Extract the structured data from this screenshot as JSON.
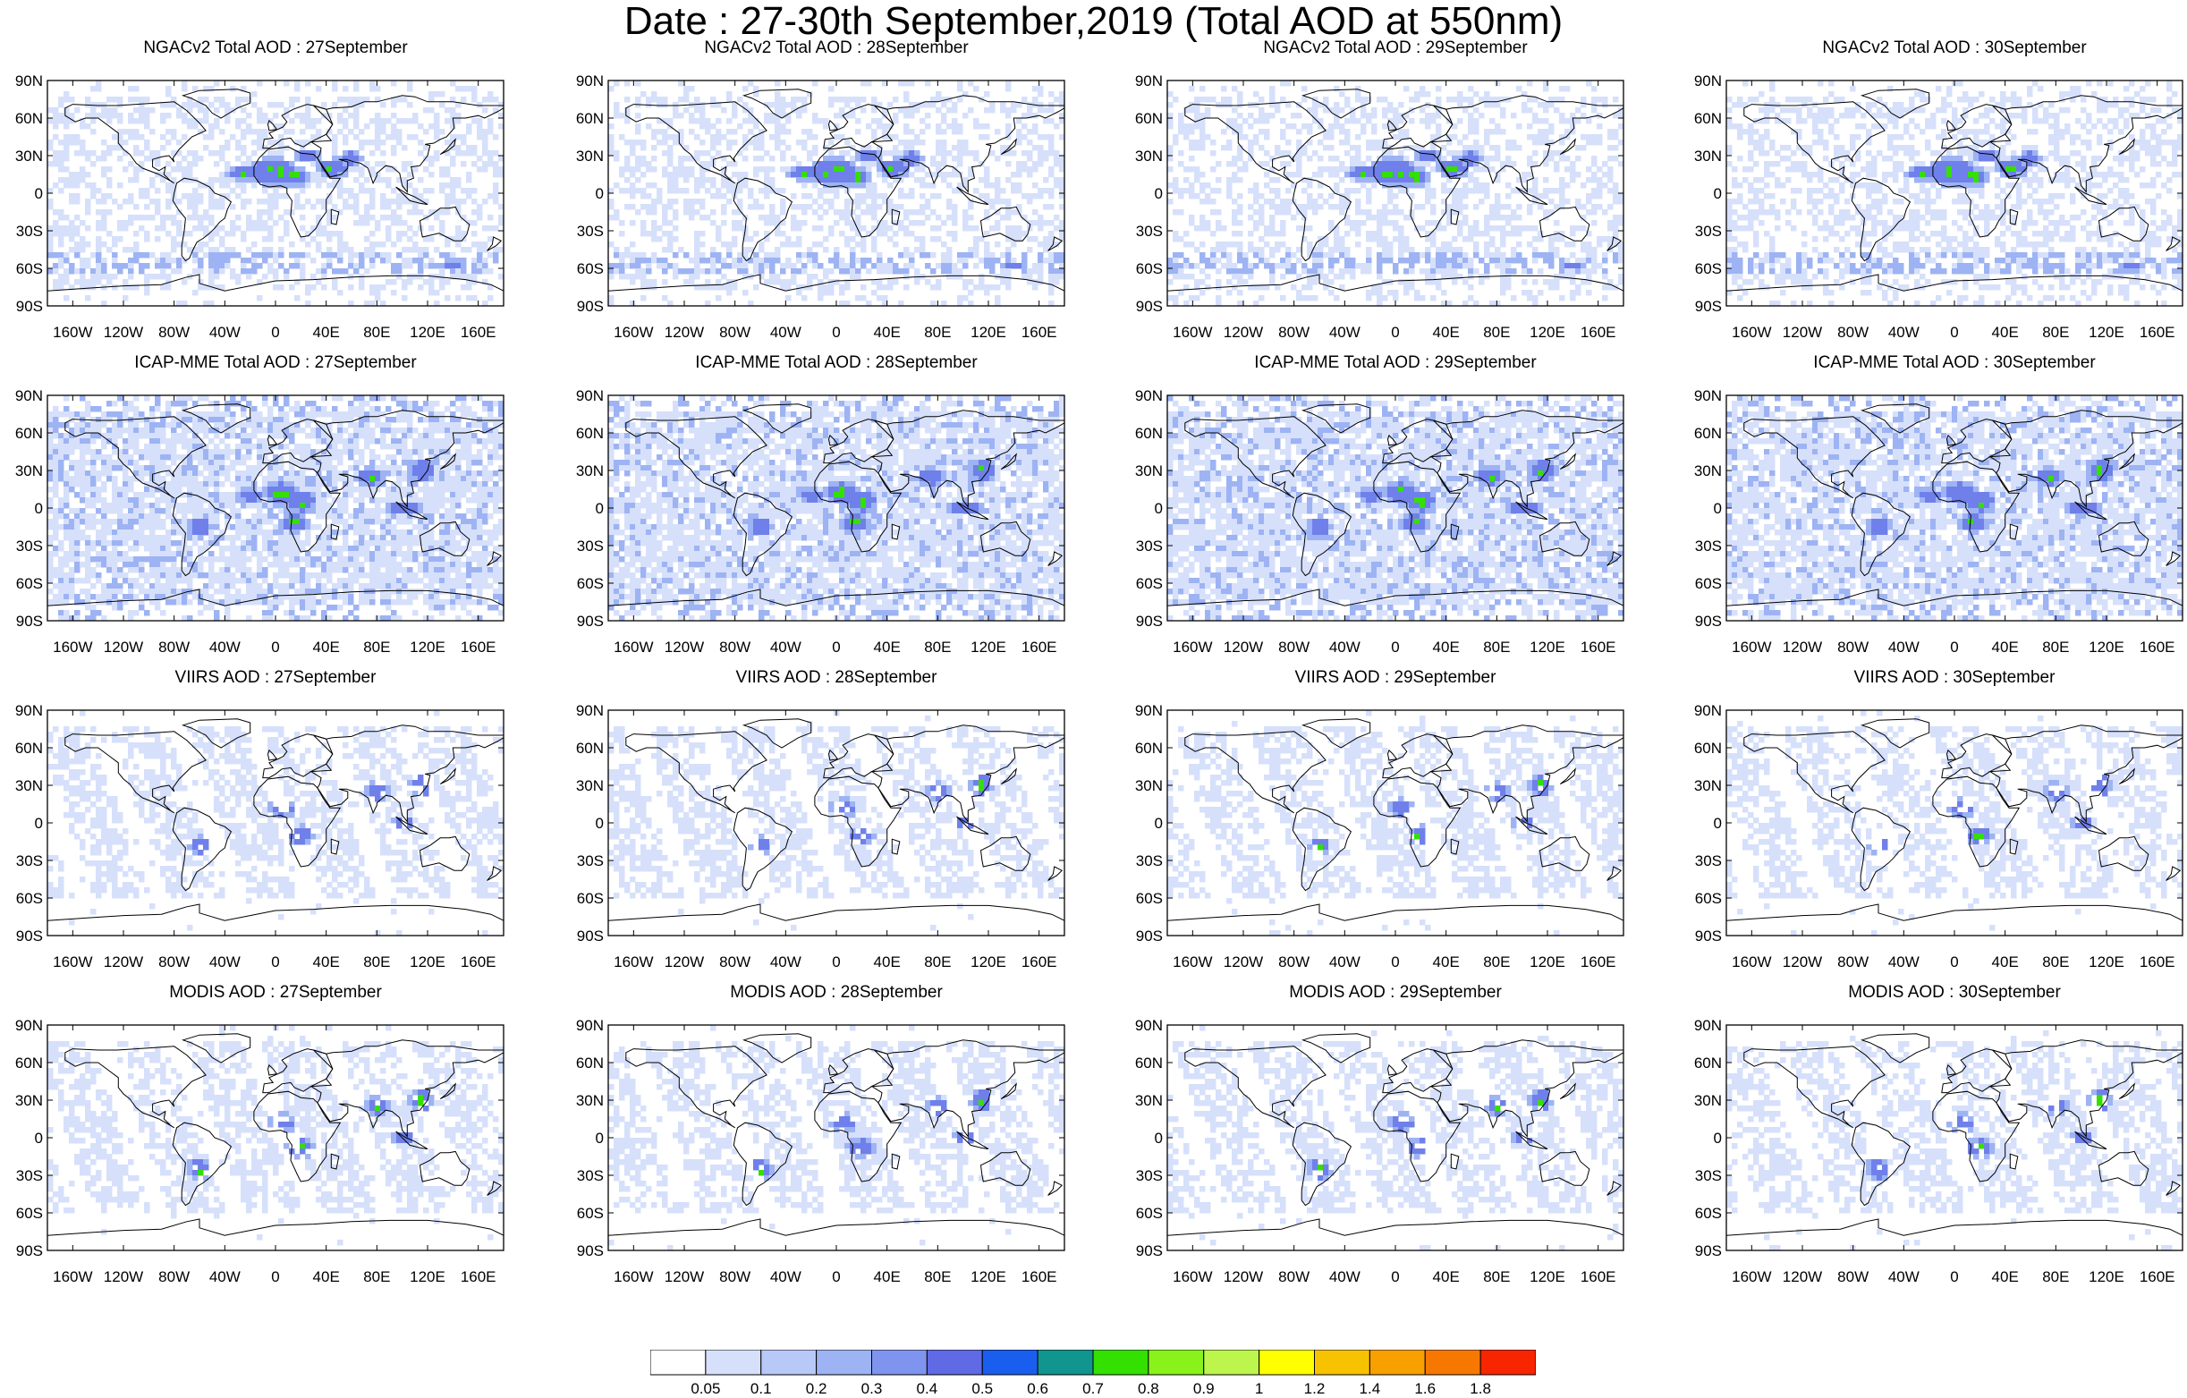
{
  "title": "Date : 27-30th September,2019 (Total AOD at 550nm)",
  "dates": [
    "27September",
    "28September",
    "29September",
    "30September"
  ],
  "panel_titles": [
    [
      "NGACv2 Total AOD : 27September",
      "NGACv2 Total AOD : 28September",
      "NGACv2 Total AOD : 29September",
      "NGACv2 Total AOD : 30September"
    ],
    [
      "ICAP-MME Total AOD : 27September",
      "ICAP-MME Total AOD : 28September",
      "ICAP-MME Total AOD : 29September",
      "ICAP-MME Total AOD : 30September"
    ],
    [
      "VIIRS AOD : 27September",
      "VIIRS AOD : 28September",
      "VIIRS AOD : 29September",
      "VIIRS AOD : 30September"
    ],
    [
      "MODIS AOD : 27September",
      "MODIS AOD : 28September",
      "MODIS AOD : 29September",
      "MODIS AOD : 30September"
    ]
  ],
  "lat_ticks": [
    "90N",
    "60N",
    "30N",
    "0",
    "30S",
    "60S",
    "90S"
  ],
  "lon_ticks": [
    "160W",
    "120W",
    "80W",
    "40W",
    "0",
    "40E",
    "80E",
    "120E",
    "160E"
  ],
  "lon_tick_values": [
    -160,
    -120,
    -80,
    -40,
    0,
    40,
    80,
    120,
    160
  ],
  "lat_tick_values": [
    90,
    60,
    30,
    0,
    -30,
    -60,
    -90
  ],
  "map_extent": {
    "lon": [
      -180,
      180
    ],
    "lat": [
      -90,
      90
    ]
  },
  "colorbar": {
    "labels": [
      "0.05",
      "0.1",
      "0.2",
      "0.3",
      "0.4",
      "0.5",
      "0.6",
      "0.7",
      "0.8",
      "0.9",
      "1",
      "1.2",
      "1.4",
      "1.6",
      "1.8"
    ],
    "colors": [
      "#ffffff",
      "#d6e0fb",
      "#b8c8f7",
      "#9db3f3",
      "#7f94ee",
      "#5f6ae4",
      "#1a5ef0",
      "#10958f",
      "#33e000",
      "#88f21a",
      "#bcf54c",
      "#ffff00",
      "#f7c200",
      "#f7a000",
      "#f77800",
      "#f72500"
    ]
  },
  "colors": {
    "background_aod": "#d6e0fb",
    "moderate_aod": "#9db3f3",
    "high_aod": "#6f80ea",
    "peak_aod": "#33e000",
    "coast": "#000000"
  }
}
